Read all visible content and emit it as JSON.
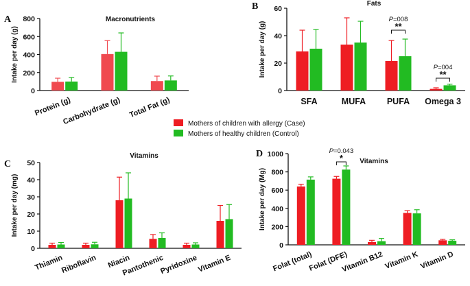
{
  "legend": {
    "case_label": "Mothers of children with allergy (Case)",
    "control_label": "Mothers of healthy children (Control)"
  },
  "colors": {
    "case_a": "#f0494f",
    "case": "#ee1d23",
    "control": "#22bb22"
  },
  "chart_data": [
    {
      "id": "A",
      "panel_letter": "A",
      "type": "bar",
      "title": "Macronutrients",
      "ylabel": "Intake per day (g)",
      "ylim": [
        0,
        800
      ],
      "yticks": [
        0,
        200,
        400,
        600,
        800
      ],
      "categories": [
        "Protein (g)",
        "Carbohydrate (g)",
        "Total Fat (g)"
      ],
      "series": [
        {
          "name": "Mothers of children with allergy (Case)",
          "values": [
            97,
            405,
            105
          ],
          "errors": [
            40,
            150,
            55
          ]
        },
        {
          "name": "Mothers of healthy children (Control)",
          "values": [
            100,
            430,
            112
          ],
          "errors": [
            45,
            210,
            50
          ]
        }
      ],
      "annotations": []
    },
    {
      "id": "B",
      "panel_letter": "B",
      "type": "bar",
      "title": "Fats",
      "ylabel": "Intake per day (g)",
      "ylim": [
        0,
        60
      ],
      "yticks": [
        0,
        20,
        40,
        60
      ],
      "categories": [
        "SFA",
        "MUFA",
        "PUFA",
        "Omega 3"
      ],
      "series": [
        {
          "name": "Mothers of children with allergy (Case)",
          "values": [
            28.5,
            33.5,
            21.5,
            1.2
          ],
          "errors": [
            15.5,
            19.5,
            15,
            0.8
          ]
        },
        {
          "name": "Mothers of healthy children (Control)",
          "values": [
            30.5,
            35,
            25,
            3.8
          ],
          "errors": [
            14,
            15.5,
            12.5,
            0.8
          ]
        }
      ],
      "annotations": [
        {
          "category": 2,
          "p": "P=008",
          "stars": "**",
          "y": 44
        },
        {
          "category": 3,
          "p": "P=004",
          "stars": "**",
          "y": 9
        }
      ]
    },
    {
      "id": "C",
      "panel_letter": "C",
      "type": "bar",
      "title": "Vitamins",
      "ylabel": "Intake per day (mg)",
      "ylim": [
        0,
        50
      ],
      "yticks": [
        0,
        10,
        20,
        30,
        40,
        50
      ],
      "categories": [
        "Thiamin",
        "Riboflavin",
        "Niacin",
        "Pantothenic",
        "Pyridoxine",
        "Vitamin E"
      ],
      "series": [
        {
          "name": "Mothers of children with allergy (Case)",
          "values": [
            2,
            2,
            28,
            5.5,
            2,
            16
          ],
          "errors": [
            1,
            1,
            13.5,
            2.5,
            1,
            9
          ]
        },
        {
          "name": "Mothers of healthy children (Control)",
          "values": [
            2.2,
            2.3,
            29,
            6,
            2.2,
            17
          ],
          "errors": [
            1.2,
            1.2,
            15,
            3,
            1,
            8.5
          ]
        }
      ],
      "annotations": []
    },
    {
      "id": "D",
      "panel_letter": "D",
      "type": "bar",
      "title": "Vitamins",
      "ylabel": "Intake per day (Mg)",
      "ylim": [
        0,
        1000
      ],
      "yticks": [
        0,
        200,
        400,
        600,
        800,
        1000
      ],
      "categories": [
        "Folat (total)",
        "Folat (DFE)",
        "Vitamin B12",
        "Vitamin K",
        "Vitamin D"
      ],
      "series": [
        {
          "name": "Mothers of children with allergy (Case)",
          "values": [
            640,
            725,
            30,
            350,
            50
          ],
          "errors": [
            25,
            25,
            20,
            25,
            10
          ]
        },
        {
          "name": "Mothers of healthy children (Control)",
          "values": [
            715,
            825,
            40,
            345,
            45
          ],
          "errors": [
            30,
            40,
            30,
            40,
            10
          ]
        }
      ],
      "annotations": [
        {
          "category": 1,
          "p": "P=0.043",
          "stars": "*",
          "y": 910
        }
      ]
    }
  ]
}
